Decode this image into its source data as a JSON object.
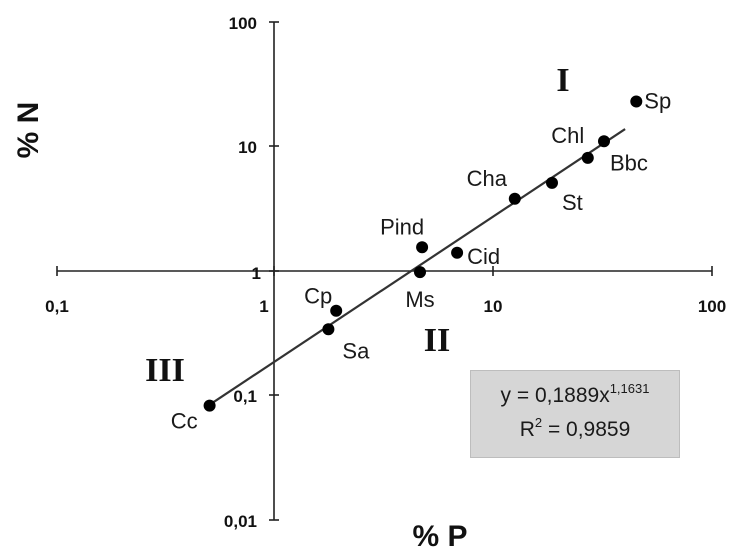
{
  "chart_data": {
    "type": "scatter",
    "xlabel": "% P",
    "ylabel": "% N",
    "x_scale": "log",
    "y_scale": "log",
    "xlim": [
      0.1,
      100
    ],
    "ylim": [
      0.01,
      100
    ],
    "x_ticks": [
      "0,1",
      "1",
      "10",
      "100"
    ],
    "y_ticks": [
      "0,01",
      "0,1",
      "1",
      "10",
      "100"
    ],
    "grid": false,
    "points": [
      {
        "label": "Sp",
        "x": 45,
        "y": 23
      },
      {
        "label": "Bbc",
        "x": 32,
        "y": 11
      },
      {
        "label": "Chl",
        "x": 27,
        "y": 8.1
      },
      {
        "label": "St",
        "x": 18.5,
        "y": 5.1
      },
      {
        "label": "Cha",
        "x": 12.5,
        "y": 3.8
      },
      {
        "label": "Pind",
        "x": 4.7,
        "y": 1.55
      },
      {
        "label": "Cid",
        "x": 6.8,
        "y": 1.4
      },
      {
        "label": "Ms",
        "x": 4.6,
        "y": 0.98
      },
      {
        "label": "Cp",
        "x": 1.9,
        "y": 0.48
      },
      {
        "label": "Sa",
        "x": 1.75,
        "y": 0.34
      },
      {
        "label": "Cc",
        "x": 0.5,
        "y": 0.083
      }
    ],
    "trendline": {
      "type": "power",
      "coefficient": 0.1889,
      "exponent": 1.1631,
      "x_range": [
        0.48,
        40
      ],
      "equation_prefix": "y = 0,1889x",
      "equation_exponent": "1,1631",
      "r2_prefix": "R",
      "r2_exponent": "2",
      "r2_value": " = 0,9859"
    },
    "regions": [
      "I",
      "II",
      "III"
    ]
  }
}
